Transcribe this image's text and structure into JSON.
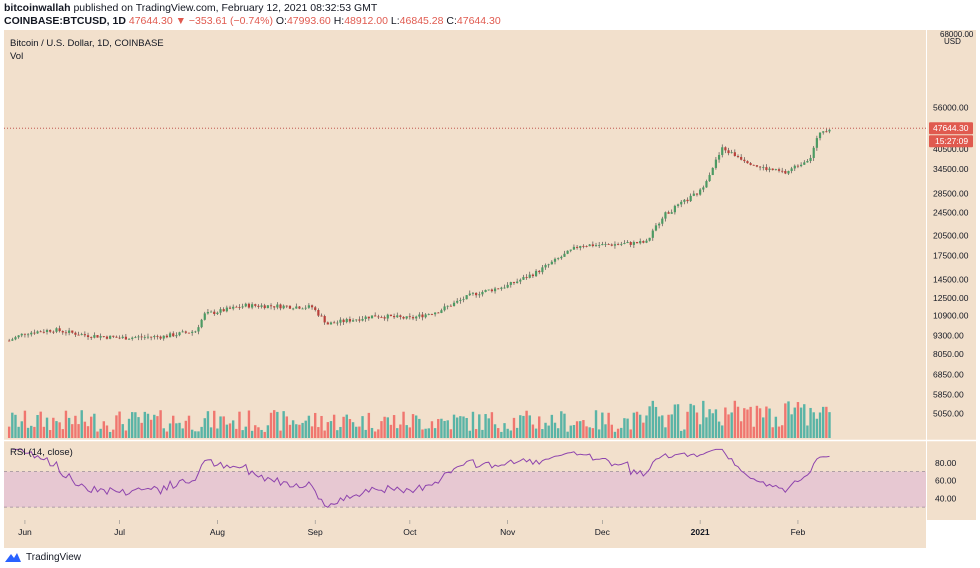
{
  "header": {
    "publisher": "bitcoinwallah",
    "published_text": "published on TradingView.com, February 12, 2021 08:32:53 GMT",
    "symbol": "COINBASE:BTCUSD, 1D",
    "last": "47644.30",
    "change": "▼ −353.61 (−0.74%)",
    "o_label": "O:",
    "o": "47993.60",
    "h_label": "H:",
    "h": "48912.00",
    "l_label": "L:",
    "l": "46845.28",
    "c_label": "C:",
    "c": "47644.30"
  },
  "pane": {
    "title": "Bitcoin / U.S. Dollar, 1D, COINBASE",
    "vol_label": "Vol",
    "currency": "USD",
    "price_badge": "47644.30",
    "time_badge": "15:27:09",
    "rsi_label": "RSI (14, close)"
  },
  "footer": {
    "brand": "TradingView"
  },
  "colors": {
    "background": "#f2e0cc",
    "up": "#26a69a",
    "down": "#ef5350",
    "candle_up_body": "#4c9a63",
    "candle_down_body": "#b9403a",
    "rsi_line": "#8e44ad",
    "rsi_band": "#e7c8d2",
    "badge": "#e05a4f"
  },
  "chart_data": {
    "type": "candlestick",
    "price_axis_ticks": [
      "56000.00",
      "47644.30",
      "40500.00",
      "34500.00",
      "28500.00",
      "24500.00",
      "20500.00",
      "17500.00",
      "14500.00",
      "12500.00",
      "10900.00",
      "9300.00",
      "8050.00",
      "6850.00",
      "5850.00",
      "5050.00"
    ],
    "price_axis_top_label": "68000.00",
    "rsi_axis_ticks": [
      "80.00",
      "60.00",
      "40.00"
    ],
    "x_ticks": [
      "Jun",
      "Jul",
      "Aug",
      "Sep",
      "Oct",
      "Nov",
      "Dec",
      "2021",
      "Feb"
    ],
    "last_price": 47644.3,
    "rsi_overbought": 70,
    "rsi_oversold": 30,
    "series_close_approx": [
      {
        "x": "2020-05-27",
        "y": 8950
      },
      {
        "x": "2020-06-01",
        "y": 9500
      },
      {
        "x": "2020-06-10",
        "y": 9750
      },
      {
        "x": "2020-06-20",
        "y": 9350
      },
      {
        "x": "2020-07-01",
        "y": 9150
      },
      {
        "x": "2020-07-15",
        "y": 9250
      },
      {
        "x": "2020-07-25",
        "y": 9650
      },
      {
        "x": "2020-07-28",
        "y": 11000
      },
      {
        "x": "2020-08-10",
        "y": 11800
      },
      {
        "x": "2020-08-20",
        "y": 11750
      },
      {
        "x": "2020-08-31",
        "y": 11650
      },
      {
        "x": "2020-09-05",
        "y": 10200
      },
      {
        "x": "2020-09-20",
        "y": 10900
      },
      {
        "x": "2020-10-01",
        "y": 10650
      },
      {
        "x": "2020-10-10",
        "y": 11300
      },
      {
        "x": "2020-10-21",
        "y": 12900
      },
      {
        "x": "2020-11-01",
        "y": 13800
      },
      {
        "x": "2020-11-10",
        "y": 15300
      },
      {
        "x": "2020-11-24",
        "y": 19000
      },
      {
        "x": "2020-12-01",
        "y": 19000
      },
      {
        "x": "2020-12-15",
        "y": 19400
      },
      {
        "x": "2020-12-20",
        "y": 23800
      },
      {
        "x": "2021-01-01",
        "y": 29000
      },
      {
        "x": "2021-01-08",
        "y": 40500
      },
      {
        "x": "2021-01-20",
        "y": 35000
      },
      {
        "x": "2021-01-28",
        "y": 33500
      },
      {
        "x": "2021-02-05",
        "y": 38000
      },
      {
        "x": "2021-02-08",
        "y": 46400
      },
      {
        "x": "2021-02-11",
        "y": 47644.3
      }
    ]
  }
}
